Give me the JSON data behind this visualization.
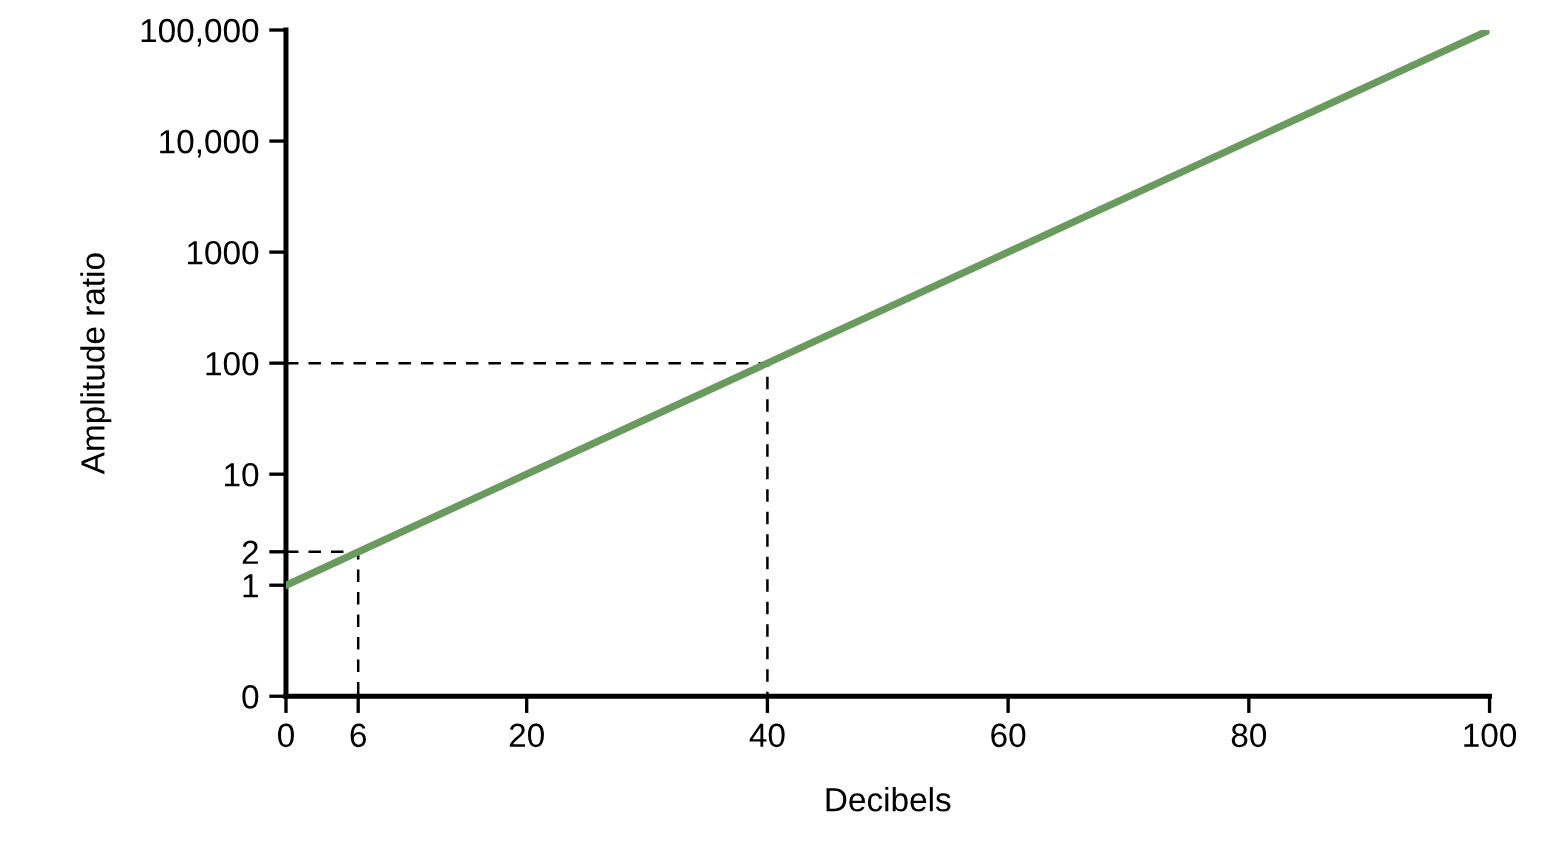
{
  "chart_data": {
    "type": "line",
    "xlabel": "Decibels",
    "ylabel": "Amplitude ratio",
    "log": "y",
    "xlim": [
      0,
      100
    ],
    "xticks": [
      0,
      6,
      20,
      40,
      60,
      80,
      100
    ],
    "ylim": [
      0.1,
      100000
    ],
    "yticks": [
      {
        "value": 0.1,
        "label": "0"
      },
      1,
      2,
      10,
      100,
      1000,
      {
        "value": 10000,
        "label": "10,000"
      },
      {
        "value": 100000,
        "label": "100,000"
      }
    ],
    "grid": false,
    "marker": "none",
    "series": [
      {
        "color": "#6a9a5e",
        "x": [
          0,
          100
        ],
        "values": [
          1,
          100000
        ],
        "line_style": "solid"
      },
      {
        "color": "#000000",
        "x": [
          0,
          6,
          6
        ],
        "values": [
          2,
          2,
          0.1
        ],
        "line_style": "dashed"
      },
      {
        "color": "#000000",
        "x": [
          0,
          40,
          40
        ],
        "values": [
          100,
          100,
          0.1
        ],
        "line_style": "dashed"
      }
    ]
  }
}
